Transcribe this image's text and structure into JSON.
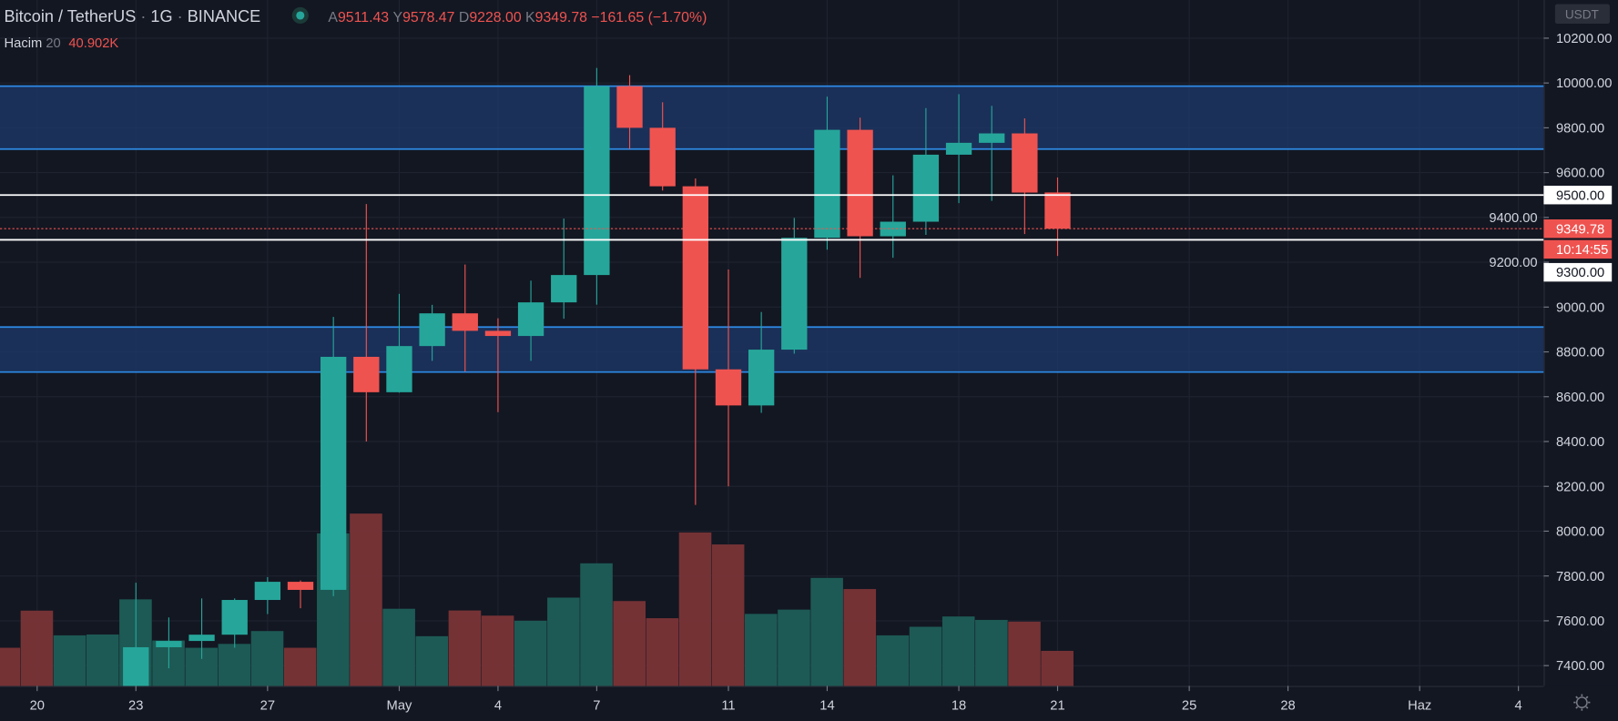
{
  "header": {
    "symbol": "Bitcoin / TetherUS",
    "interval": "1G",
    "exchange": "BINANCE",
    "status_dot_color": "#26a69a",
    "ohlc": [
      {
        "label": "A",
        "value": "9511.43"
      },
      {
        "label": "Y",
        "value": "9578.47"
      },
      {
        "label": "D",
        "value": "9228.00"
      },
      {
        "label": "K",
        "value": "9349.78"
      }
    ],
    "change": "−161.65 (−1.70%)"
  },
  "volume_legend": {
    "label": "Hacim",
    "length": "20",
    "value": "40.902K"
  },
  "price_axis": {
    "currency": "USDT",
    "ticks": [
      "10200.00",
      "10000.00",
      "9800.00",
      "9600.00",
      "9400.00",
      "9200.00",
      "9000.00",
      "8800.00",
      "8600.00",
      "8400.00",
      "8200.00",
      "8000.00",
      "7800.00",
      "7600.00",
      "7400.00"
    ],
    "last_price_label": "9349.78",
    "countdown": "10:14:55",
    "line_labels": [
      "9500.00",
      "9300.00"
    ],
    "settings_icon": "gear-icon"
  },
  "time_axis": {
    "labels": [
      {
        "text": "20",
        "day": "2020-04-20"
      },
      {
        "text": "23",
        "day": "2020-04-23"
      },
      {
        "text": "27",
        "day": "2020-04-27"
      },
      {
        "text": "May",
        "day": "2020-05-01"
      },
      {
        "text": "4",
        "day": "2020-05-04"
      },
      {
        "text": "7",
        "day": "2020-05-07"
      },
      {
        "text": "11",
        "day": "2020-05-11"
      },
      {
        "text": "14",
        "day": "2020-05-14"
      },
      {
        "text": "18",
        "day": "2020-05-18"
      },
      {
        "text": "21",
        "day": "2020-05-21"
      },
      {
        "text": "25",
        "day": "2020-05-25"
      },
      {
        "text": "28",
        "day": "2020-05-28"
      },
      {
        "text": "Haz",
        "day": "2020-06-01"
      },
      {
        "text": "4",
        "day": "2020-06-04"
      }
    ]
  },
  "colors": {
    "background": "#131722",
    "up": "#26a69a",
    "down": "#ef5350",
    "zone_fill": "#1e3a6b",
    "zone_line": "#2e8ae6",
    "horizontal_line": "#ffffff"
  },
  "chart_data": {
    "type": "candlestick",
    "price_range": [
      7300,
      10300
    ],
    "grid": true,
    "zones": [
      [
        9705,
        9986
      ],
      [
        8710,
        8911
      ]
    ],
    "horizontal_lines": [
      9500,
      9300
    ],
    "last_price": 9349.78,
    "volume_unit": "K",
    "candles": [
      {
        "d": "2020-04-19",
        "o": null,
        "h": null,
        "l": null,
        "c": null,
        "v": 44.5,
        "dir": "down"
      },
      {
        "d": "2020-04-20",
        "o": null,
        "h": null,
        "l": null,
        "c": null,
        "v": 87.8,
        "dir": "down"
      },
      {
        "d": "2020-04-21",
        "o": null,
        "h": null,
        "l": null,
        "c": null,
        "v": 59,
        "dir": "up"
      },
      {
        "d": "2020-04-22",
        "o": null,
        "h": null,
        "l": null,
        "c": null,
        "v": 60,
        "dir": "up"
      },
      {
        "d": "2020-04-23",
        "o": 7118,
        "h": 7770,
        "l": 7012,
        "c": 7482,
        "v": 101
      },
      {
        "d": "2020-04-24",
        "o": 7482,
        "h": 7615,
        "l": 7388,
        "c": 7510,
        "v": 53
      },
      {
        "d": "2020-04-25",
        "o": 7510,
        "h": 7700,
        "l": 7430,
        "c": 7538,
        "v": 44.5
      },
      {
        "d": "2020-04-26",
        "o": 7538,
        "h": 7700,
        "l": 7480,
        "c": 7693,
        "v": 49
      },
      {
        "d": "2020-04-27",
        "o": 7693,
        "h": 7795,
        "l": 7630,
        "c": 7774,
        "v": 64
      },
      {
        "d": "2020-04-28",
        "o": 7774,
        "h": 7780,
        "l": 7656,
        "c": 7738,
        "v": 44.5
      },
      {
        "d": "2020-04-29",
        "o": 7738,
        "h": 8956,
        "l": 7710,
        "c": 8778,
        "v": 178
      },
      {
        "d": "2020-04-30",
        "o": 8778,
        "h": 9460,
        "l": 8400,
        "c": 8620,
        "v": 201
      },
      {
        "d": "2020-05-01",
        "o": 8620,
        "h": 9059,
        "l": 8618,
        "c": 8826,
        "v": 90
      },
      {
        "d": "2020-05-02",
        "o": 8826,
        "h": 9010,
        "l": 8760,
        "c": 8972,
        "v": 58
      },
      {
        "d": "2020-05-03",
        "o": 8972,
        "h": 9190,
        "l": 8712,
        "c": 8894,
        "v": 88
      },
      {
        "d": "2020-05-04",
        "o": 8894,
        "h": 8950,
        "l": 8531,
        "c": 8871,
        "v": 82
      },
      {
        "d": "2020-05-05",
        "o": 8871,
        "h": 9118,
        "l": 8760,
        "c": 9021,
        "v": 76
      },
      {
        "d": "2020-05-06",
        "o": 9021,
        "h": 9395,
        "l": 8948,
        "c": 9143,
        "v": 103
      },
      {
        "d": "2020-05-07",
        "o": 9143,
        "h": 10067,
        "l": 9011,
        "c": 9986,
        "v": 143
      },
      {
        "d": "2020-05-08",
        "o": 9986,
        "h": 10035,
        "l": 9705,
        "c": 9800,
        "v": 99
      },
      {
        "d": "2020-05-09",
        "o": 9800,
        "h": 9914,
        "l": 9520,
        "c": 9539,
        "v": 79
      },
      {
        "d": "2020-05-10",
        "o": 9539,
        "h": 9574,
        "l": 8117,
        "c": 8722,
        "v": 179
      },
      {
        "d": "2020-05-11",
        "o": 8722,
        "h": 9168,
        "l": 8200,
        "c": 8561,
        "v": 165
      },
      {
        "d": "2020-05-12",
        "o": 8561,
        "h": 8978,
        "l": 8528,
        "c": 8810,
        "v": 84
      },
      {
        "d": "2020-05-13",
        "o": 8810,
        "h": 9398,
        "l": 8792,
        "c": 9309,
        "v": 89
      },
      {
        "d": "2020-05-14",
        "o": 9309,
        "h": 9939,
        "l": 9256,
        "c": 9791,
        "v": 126
      },
      {
        "d": "2020-05-15",
        "o": 9791,
        "h": 9845,
        "l": 9130,
        "c": 9316,
        "v": 113
      },
      {
        "d": "2020-05-16",
        "o": 9316,
        "h": 9588,
        "l": 9220,
        "c": 9381,
        "v": 59
      },
      {
        "d": "2020-05-17",
        "o": 9381,
        "h": 9888,
        "l": 9322,
        "c": 9680,
        "v": 69
      },
      {
        "d": "2020-05-18",
        "o": 9680,
        "h": 9950,
        "l": 9464,
        "c": 9733,
        "v": 81
      },
      {
        "d": "2020-05-19",
        "o": 9733,
        "h": 9898,
        "l": 9474,
        "c": 9775,
        "v": 77
      },
      {
        "d": "2020-05-20",
        "o": 9775,
        "h": 9842,
        "l": 9326,
        "c": 9511,
        "v": 75
      },
      {
        "d": "2020-05-21",
        "o": 9511.43,
        "h": 9578.47,
        "l": 9228,
        "c": 9349.78,
        "v": 40.902
      }
    ]
  }
}
